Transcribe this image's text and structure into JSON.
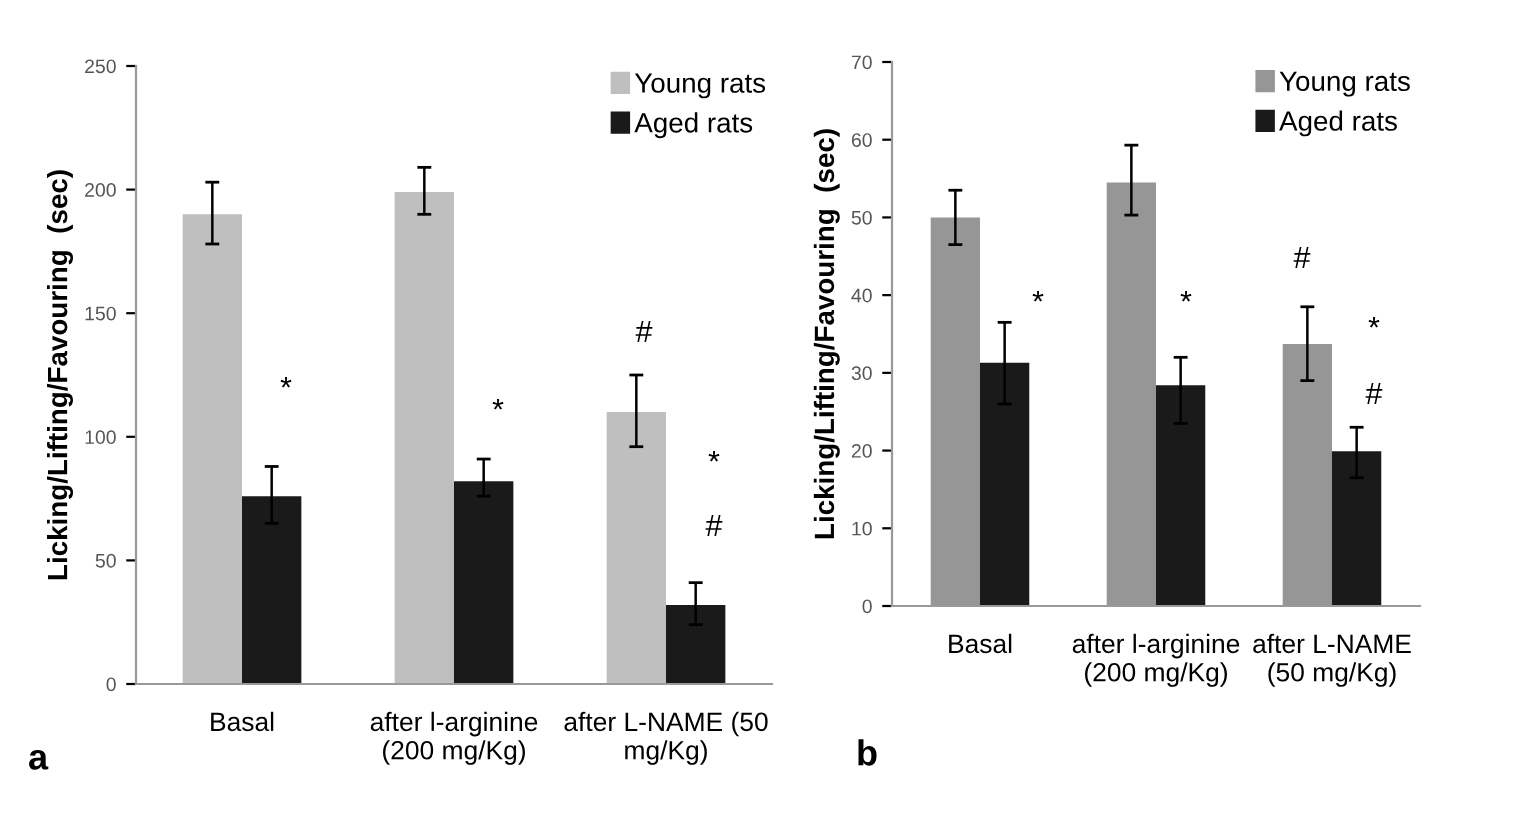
{
  "chart_data": [
    {
      "type": "bar",
      "ylabel": "Licking/Lifting/Favouring  (sec)",
      "categories": [
        "Basal",
        "after l-arginine\n(200 mg/Kg)",
        "after L-NAME (50\nmg/Kg)"
      ],
      "ylim": [
        0,
        250
      ],
      "yticks": [
        0,
        50,
        100,
        150,
        200,
        250
      ],
      "legend": "top right",
      "grid": false,
      "series": [
        {
          "name": "Young rats",
          "color": "#bfbfbf",
          "values": [
            190,
            199,
            110
          ],
          "errors": [
            [
              178,
              203
            ],
            [
              190,
              209
            ],
            [
              96,
              125
            ]
          ]
        },
        {
          "name": "Aged rats",
          "color": "#1a1a1a",
          "values": [
            76,
            82,
            32
          ],
          "errors": [
            [
              65,
              88
            ],
            [
              76,
              91
            ],
            [
              24,
              41
            ]
          ]
        }
      ],
      "annotations": [
        "a",
        "*",
        "*",
        "#",
        "*",
        "#"
      ]
    },
    {
      "type": "bar",
      "ylabel": "Licking/Lifting/Favouring  (sec)",
      "categories": [
        "Basal",
        "after l-arginine\n(200 mg/Kg)",
        "after L-NAME\n(50 mg/Kg)"
      ],
      "ylim": [
        0,
        70
      ],
      "yticks": [
        0,
        10,
        20,
        30,
        40,
        50,
        60,
        70
      ],
      "legend": "top right",
      "grid": false,
      "series": [
        {
          "name": "Young rats",
          "color": "#969696",
          "values": [
            50,
            54.5,
            33.7
          ],
          "errors": [
            [
              46.5,
              53.5
            ],
            [
              50.3,
              59.3
            ],
            [
              29,
              38.5
            ]
          ]
        },
        {
          "name": "Aged rats",
          "color": "#1a1a1a",
          "values": [
            31.3,
            28.4,
            19.9
          ],
          "errors": [
            [
              26,
              36.5
            ],
            [
              23.5,
              32
            ],
            [
              16.5,
              23
            ]
          ]
        }
      ],
      "annotations": [
        "b",
        "*",
        "*",
        "#",
        "*",
        "#"
      ]
    }
  ]
}
